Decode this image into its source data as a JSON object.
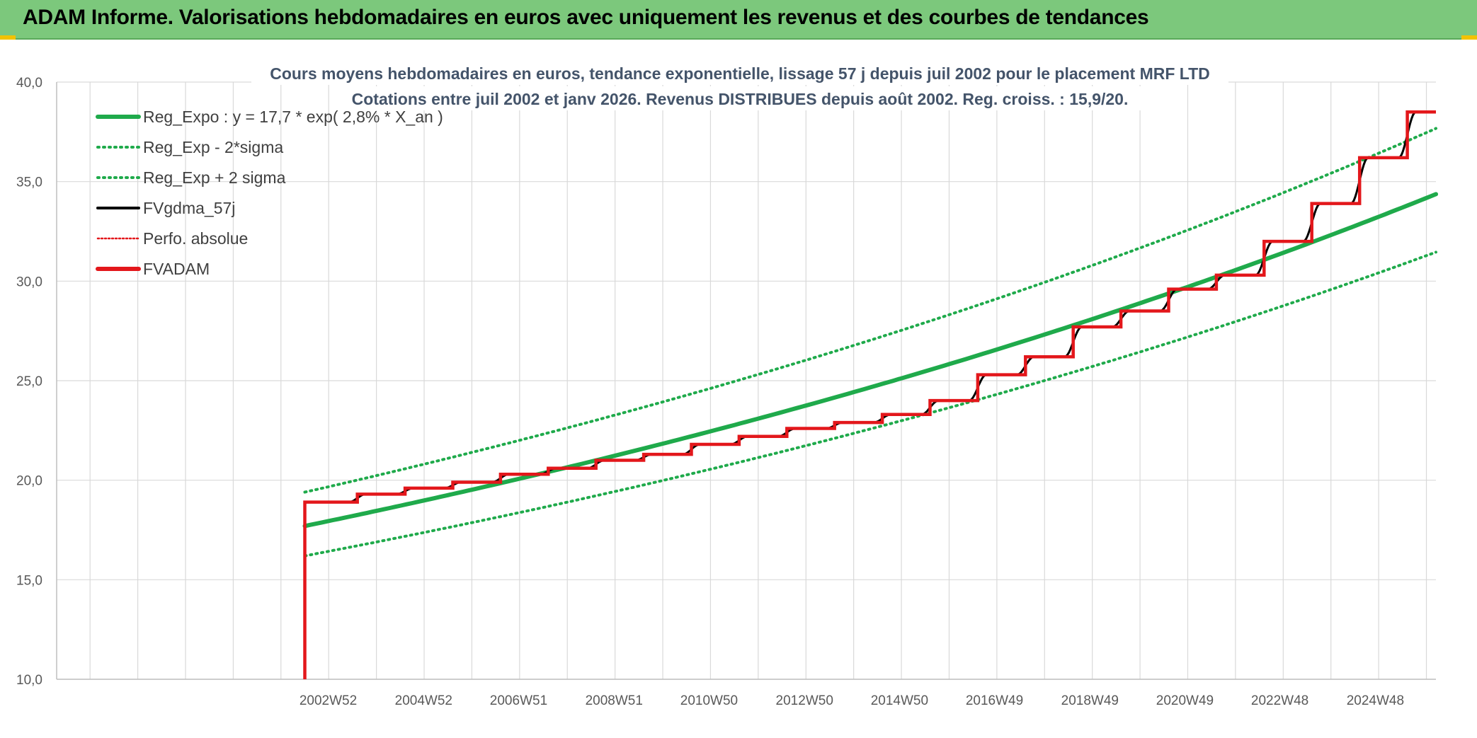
{
  "banner": {
    "title": "ADAM Informe. Valorisations hebdomadaires en euros avec uniquement les revenus et des courbes de tendances"
  },
  "colors": {
    "banner_bg": "#7cc87c",
    "trend": "#1faa4b",
    "fv": "#e3171b",
    "gdma": "#000000",
    "perfo": "#e3171b"
  },
  "chart_data": {
    "type": "line",
    "title": "Cours moyens hebdomadaires en euros, tendance exponentielle, lissage 57 j depuis juil 2002 pour le placement MRF LTD",
    "subtitle": "Cotations entre juil 2002 et janv 2026. Revenus DISTRIBUES depuis août 2002. Reg. croiss. : 15,9/20.",
    "xlabel": "",
    "ylabel": "",
    "ylim": [
      10,
      40
    ],
    "yticks": [
      "10,0",
      "15,0",
      "20,0",
      "25,0",
      "30,0",
      "35,0",
      "40,0"
    ],
    "xlim": [
      1997.3,
      2026.2
    ],
    "xticks": [
      {
        "label": "2002W52",
        "x": 2002.99
      },
      {
        "label": "2004W52",
        "x": 2004.99
      },
      {
        "label": "2006W51",
        "x": 2006.98
      },
      {
        "label": "2008W51",
        "x": 2008.98
      },
      {
        "label": "2010W50",
        "x": 2010.97
      },
      {
        "label": "2012W50",
        "x": 2012.97
      },
      {
        "label": "2014W50",
        "x": 2014.96
      },
      {
        "label": "2016W49",
        "x": 2016.95
      },
      {
        "label": "2018W49",
        "x": 2018.95
      },
      {
        "label": "2020W49",
        "x": 2020.94
      },
      {
        "label": "2022W48",
        "x": 2022.93
      },
      {
        "label": "2024W48",
        "x": 2024.93
      }
    ],
    "grid": true,
    "legend_position": "top-left",
    "legend": [
      {
        "label": "Reg_Expo : y = 17,7 * exp( 2,8% *  X_an )",
        "style": "solid-thick",
        "color": "#1faa4b"
      },
      {
        "label": "Reg_Exp - 2*sigma",
        "style": "dotted",
        "color": "#1faa4b"
      },
      {
        "label": "Reg_Exp + 2 sigma",
        "style": "dotted",
        "color": "#1faa4b"
      },
      {
        "label": "FVgdma_57j",
        "style": "solid",
        "color": "#000000"
      },
      {
        "label": "Perfo. absolue",
        "style": "dotted",
        "color": "#e3171b"
      },
      {
        "label": "FVADAM",
        "style": "solid-thick",
        "color": "#e3171b"
      }
    ],
    "series": [
      {
        "name": "Reg_Expo : y = 17,7 * exp( 2,8% *  X_an )",
        "x_start": 2002.5,
        "x_end": 2026.2,
        "a": 17.7,
        "rate": 0.028
      },
      {
        "name": "Reg_Exp - 2*sigma",
        "x_start": 2002.5,
        "x_end": 2026.2,
        "a": 16.2,
        "rate": 0.028
      },
      {
        "name": "Reg_Exp + 2 sigma",
        "x_start": 2002.5,
        "x_end": 2026.2,
        "a": 19.4,
        "rate": 0.028
      },
      {
        "name": "FVADAM",
        "start_x": 2002.5,
        "start_y": 10.0,
        "end_x": 2026.2,
        "steps": [
          {
            "x": 2002.5,
            "y": 18.9
          },
          {
            "x": 2003.6,
            "y": 19.3
          },
          {
            "x": 2004.6,
            "y": 19.6
          },
          {
            "x": 2005.6,
            "y": 19.9
          },
          {
            "x": 2006.6,
            "y": 20.3
          },
          {
            "x": 2007.6,
            "y": 20.6
          },
          {
            "x": 2008.6,
            "y": 21.0
          },
          {
            "x": 2009.6,
            "y": 21.3
          },
          {
            "x": 2010.6,
            "y": 21.8
          },
          {
            "x": 2011.6,
            "y": 22.2
          },
          {
            "x": 2012.6,
            "y": 22.6
          },
          {
            "x": 2013.6,
            "y": 22.9
          },
          {
            "x": 2014.6,
            "y": 23.3
          },
          {
            "x": 2015.6,
            "y": 24.0
          },
          {
            "x": 2016.6,
            "y": 25.3
          },
          {
            "x": 2017.6,
            "y": 26.2
          },
          {
            "x": 2018.6,
            "y": 27.7
          },
          {
            "x": 2019.6,
            "y": 28.5
          },
          {
            "x": 2020.6,
            "y": 29.6
          },
          {
            "x": 2021.6,
            "y": 30.3
          },
          {
            "x": 2022.6,
            "y": 32.0
          },
          {
            "x": 2023.6,
            "y": 33.9
          },
          {
            "x": 2024.6,
            "y": 36.2
          },
          {
            "x": 2025.6,
            "y": 38.5
          }
        ]
      }
    ]
  }
}
